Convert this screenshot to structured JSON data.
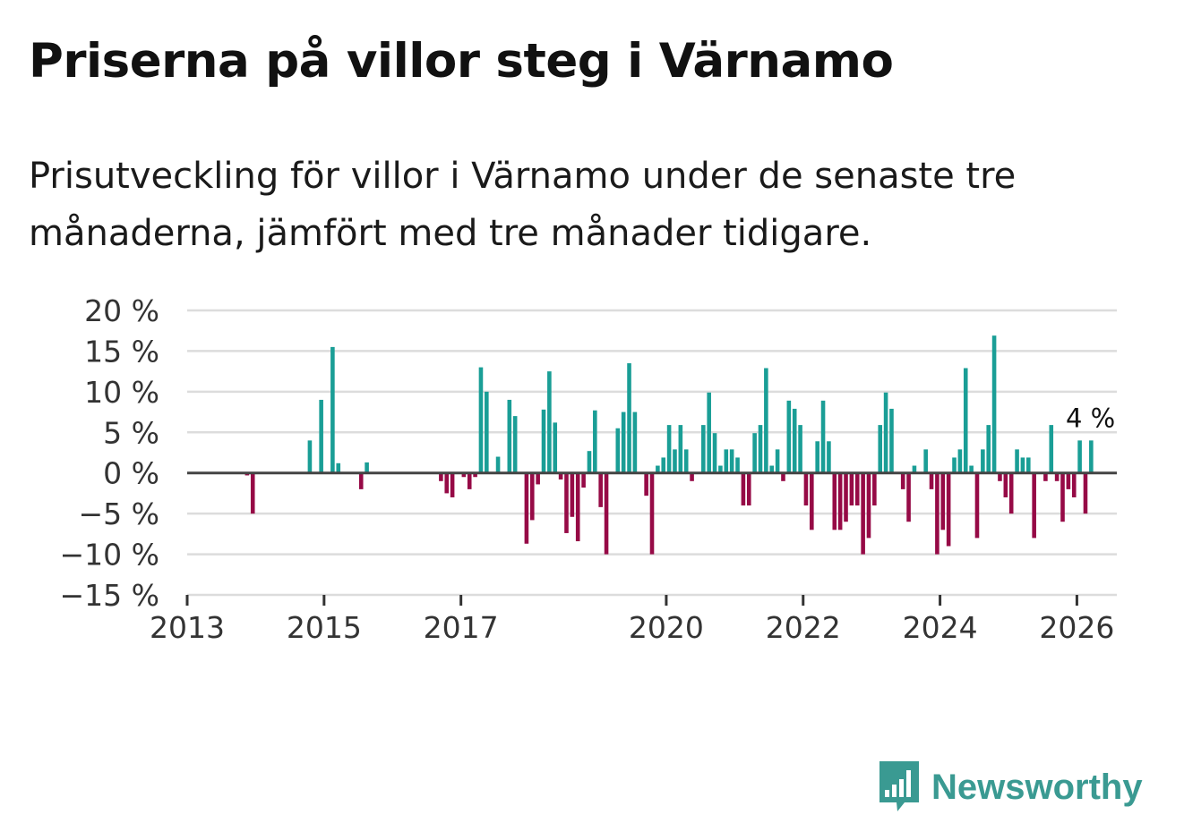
{
  "title": "Priserna på villor steg i Värnamo",
  "subtitle": "Prisutveckling för villor i Värnamo under de senaste tre månaderna, jämfört med tre månader tidigare.",
  "brand": "Newsworthy",
  "colors": {
    "positive": "#1a9e96",
    "negative": "#960a46",
    "grid": "#dcdcdc",
    "zero": "#444444",
    "brand": "#3a9a92"
  },
  "chart_data": {
    "type": "bar",
    "title": "Priserna på villor steg i Värnamo",
    "ylabel": "",
    "xlabel": "",
    "ylim": [
      -15,
      20
    ],
    "xlim": [
      "2013-01",
      "2026-08"
    ],
    "y_ticks": [
      20,
      15,
      10,
      5,
      0,
      -5,
      -10,
      -15
    ],
    "y_tick_labels": [
      "20 %",
      "15 %",
      "10 %",
      "5 %",
      "0 %",
      "−5 %",
      "−10 %",
      "−15 %"
    ],
    "x_ticks": [
      "2013-01",
      "2015-01",
      "2017-01",
      "2020-01",
      "2022-01",
      "2024-01",
      "2026-01"
    ],
    "x_tick_labels": [
      "2013",
      "2015",
      "2017",
      "2020",
      "2022",
      "2024",
      "2026"
    ],
    "annotation": {
      "text": "4 %",
      "date": "2026-01",
      "value": 4
    },
    "series": [
      {
        "name": "Prisutveckling",
        "points": [
          {
            "date": "2013-11",
            "value": -0.3
          },
          {
            "date": "2013-12",
            "value": -5
          },
          {
            "date": "2014-10",
            "value": 4
          },
          {
            "date": "2014-12",
            "value": 9
          },
          {
            "date": "2015-02",
            "value": 15.5
          },
          {
            "date": "2015-03",
            "value": 1.2
          },
          {
            "date": "2015-07",
            "value": -2
          },
          {
            "date": "2015-08",
            "value": 1.3
          },
          {
            "date": "2016-09",
            "value": -1
          },
          {
            "date": "2016-10",
            "value": -2.5
          },
          {
            "date": "2016-11",
            "value": -3
          },
          {
            "date": "2017-01",
            "value": -0.5
          },
          {
            "date": "2017-02",
            "value": -2
          },
          {
            "date": "2017-03",
            "value": -0.5
          },
          {
            "date": "2017-04",
            "value": 13
          },
          {
            "date": "2017-05",
            "value": 10
          },
          {
            "date": "2017-07",
            "value": 2
          },
          {
            "date": "2017-09",
            "value": 9
          },
          {
            "date": "2017-10",
            "value": 7
          },
          {
            "date": "2017-12",
            "value": -8.7
          },
          {
            "date": "2018-01",
            "value": -5.8
          },
          {
            "date": "2018-02",
            "value": -1.4
          },
          {
            "date": "2018-03",
            "value": 7.8
          },
          {
            "date": "2018-04",
            "value": 12.5
          },
          {
            "date": "2018-05",
            "value": 6.2
          },
          {
            "date": "2018-06",
            "value": -0.8
          },
          {
            "date": "2018-07",
            "value": -7.4
          },
          {
            "date": "2018-08",
            "value": -5.4
          },
          {
            "date": "2018-09",
            "value": -8.4
          },
          {
            "date": "2018-10",
            "value": -1.8
          },
          {
            "date": "2018-11",
            "value": 2.7
          },
          {
            "date": "2018-12",
            "value": 7.7
          },
          {
            "date": "2019-01",
            "value": -4.2
          },
          {
            "date": "2019-02",
            "value": -10
          },
          {
            "date": "2019-04",
            "value": 5.5
          },
          {
            "date": "2019-05",
            "value": 7.5
          },
          {
            "date": "2019-06",
            "value": 13.5
          },
          {
            "date": "2019-07",
            "value": 7.5
          },
          {
            "date": "2019-09",
            "value": -2.8
          },
          {
            "date": "2019-10",
            "value": -10
          },
          {
            "date": "2019-11",
            "value": 0.9
          },
          {
            "date": "2019-12",
            "value": 1.9
          },
          {
            "date": "2020-01",
            "value": 5.9
          },
          {
            "date": "2020-02",
            "value": 2.9
          },
          {
            "date": "2020-03",
            "value": 5.9
          },
          {
            "date": "2020-04",
            "value": 2.9
          },
          {
            "date": "2020-05",
            "value": -1
          },
          {
            "date": "2020-07",
            "value": 5.9
          },
          {
            "date": "2020-08",
            "value": 9.9
          },
          {
            "date": "2020-09",
            "value": 4.9
          },
          {
            "date": "2020-10",
            "value": 0.9
          },
          {
            "date": "2020-11",
            "value": 2.9
          },
          {
            "date": "2020-12",
            "value": 2.9
          },
          {
            "date": "2021-01",
            "value": 1.9
          },
          {
            "date": "2021-02",
            "value": -4
          },
          {
            "date": "2021-03",
            "value": -4
          },
          {
            "date": "2021-04",
            "value": 4.9
          },
          {
            "date": "2021-05",
            "value": 5.9
          },
          {
            "date": "2021-06",
            "value": 12.9
          },
          {
            "date": "2021-07",
            "value": 0.9
          },
          {
            "date": "2021-08",
            "value": 2.9
          },
          {
            "date": "2021-09",
            "value": -1
          },
          {
            "date": "2021-10",
            "value": 8.9
          },
          {
            "date": "2021-11",
            "value": 7.9
          },
          {
            "date": "2021-12",
            "value": 5.9
          },
          {
            "date": "2022-01",
            "value": -4
          },
          {
            "date": "2022-02",
            "value": -7
          },
          {
            "date": "2022-03",
            "value": 3.9
          },
          {
            "date": "2022-04",
            "value": 8.9
          },
          {
            "date": "2022-05",
            "value": 3.9
          },
          {
            "date": "2022-06",
            "value": -7
          },
          {
            "date": "2022-07",
            "value": -7
          },
          {
            "date": "2022-08",
            "value": -6
          },
          {
            "date": "2022-09",
            "value": -4
          },
          {
            "date": "2022-10",
            "value": -4
          },
          {
            "date": "2022-11",
            "value": -10
          },
          {
            "date": "2022-12",
            "value": -8
          },
          {
            "date": "2023-01",
            "value": -4
          },
          {
            "date": "2023-02",
            "value": 5.9
          },
          {
            "date": "2023-03",
            "value": 9.9
          },
          {
            "date": "2023-04",
            "value": 7.9
          },
          {
            "date": "2023-06",
            "value": -2
          },
          {
            "date": "2023-07",
            "value": -6
          },
          {
            "date": "2023-08",
            "value": 0.9
          },
          {
            "date": "2023-10",
            "value": 2.9
          },
          {
            "date": "2023-11",
            "value": -2
          },
          {
            "date": "2023-12",
            "value": -10
          },
          {
            "date": "2024-01",
            "value": -7
          },
          {
            "date": "2024-02",
            "value": -9
          },
          {
            "date": "2024-03",
            "value": 1.9
          },
          {
            "date": "2024-04",
            "value": 2.9
          },
          {
            "date": "2024-05",
            "value": 12.9
          },
          {
            "date": "2024-06",
            "value": 0.9
          },
          {
            "date": "2024-07",
            "value": -8
          },
          {
            "date": "2024-08",
            "value": 2.9
          },
          {
            "date": "2024-09",
            "value": 5.9
          },
          {
            "date": "2024-10",
            "value": 16.9
          },
          {
            "date": "2024-11",
            "value": -1
          },
          {
            "date": "2024-12",
            "value": -3
          },
          {
            "date": "2025-01",
            "value": -5
          },
          {
            "date": "2025-02",
            "value": 2.9
          },
          {
            "date": "2025-03",
            "value": 1.9
          },
          {
            "date": "2025-04",
            "value": 1.9
          },
          {
            "date": "2025-05",
            "value": -8
          },
          {
            "date": "2025-07",
            "value": -1
          },
          {
            "date": "2025-08",
            "value": 5.9
          },
          {
            "date": "2025-09",
            "value": -1
          },
          {
            "date": "2025-10",
            "value": -6
          },
          {
            "date": "2025-11",
            "value": -2
          },
          {
            "date": "2025-12",
            "value": -3
          },
          {
            "date": "2026-01",
            "value": 4
          },
          {
            "date": "2026-02",
            "value": -5
          },
          {
            "date": "2026-03",
            "value": 4
          }
        ]
      }
    ]
  }
}
